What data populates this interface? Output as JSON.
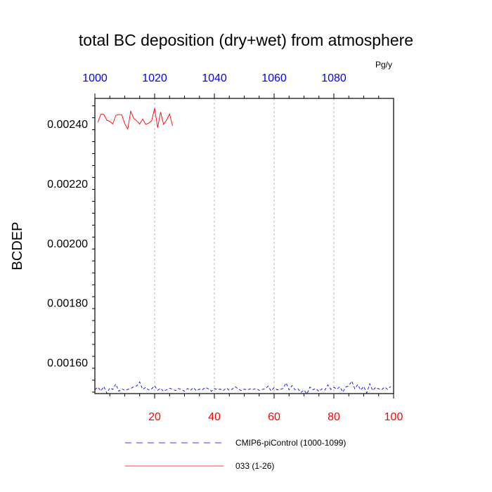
{
  "chart_data": {
    "type": "line",
    "title": "total BC deposition (dry+wet) from atmosphere",
    "units": "Pg/y",
    "ylabel": "BCDEP",
    "xlabel": "",
    "xlim": [
      0,
      100
    ],
    "ylim": [
      0.001495,
      0.002485
    ],
    "top_xlim": [
      1000,
      1100
    ],
    "x_ticks": [
      20,
      40,
      60,
      80,
      100
    ],
    "top_x_ticks": [
      1000,
      1020,
      1040,
      1060,
      1080
    ],
    "y_ticks": [
      0.0016,
      0.0018,
      0.002,
      0.0022,
      0.0024
    ],
    "y_tick_labels": [
      "0.00160",
      "0.00180",
      "0.00200",
      "0.00220",
      "0.00240"
    ],
    "grid": "vertical dashed at bottom x ticks",
    "legend_position": "bottom",
    "colors": {
      "bottom_axis": "#ff0000",
      "top_axis": "#0000ff",
      "series_ctrl": "#0000ff",
      "series_033": "#ff0000",
      "grid": "#aaaaaa"
    },
    "series": [
      {
        "name": "CMIP6-piControl (1000-1099)",
        "color": "#0000ff",
        "dash": "dashed",
        "axis": "top",
        "x": [
          1000,
          1001,
          1002,
          1003,
          1004,
          1005,
          1006,
          1007,
          1008,
          1009,
          1010,
          1011,
          1012,
          1013,
          1014,
          1015,
          1016,
          1017,
          1018,
          1019,
          1020,
          1021,
          1022,
          1023,
          1024,
          1025,
          1026,
          1027,
          1028,
          1029,
          1030,
          1031,
          1032,
          1033,
          1034,
          1035,
          1036,
          1037,
          1038,
          1039,
          1040,
          1041,
          1042,
          1043,
          1044,
          1045,
          1046,
          1047,
          1048,
          1049,
          1050,
          1051,
          1052,
          1053,
          1054,
          1055,
          1056,
          1057,
          1058,
          1059,
          1060,
          1061,
          1062,
          1063,
          1064,
          1065,
          1066,
          1067,
          1068,
          1069,
          1070,
          1071,
          1072,
          1073,
          1074,
          1075,
          1076,
          1077,
          1078,
          1079,
          1080,
          1081,
          1082,
          1083,
          1084,
          1085,
          1086,
          1087,
          1088,
          1089,
          1090,
          1091,
          1092,
          1093,
          1094,
          1095,
          1096,
          1097,
          1098,
          1099
        ],
        "y": [
          0.001508,
          0.001517,
          0.001504,
          0.001519,
          0.001496,
          0.001514,
          0.001509,
          0.001527,
          0.001503,
          0.001511,
          0.001506,
          0.001509,
          0.001512,
          0.001518,
          0.001521,
          0.001534,
          0.001509,
          0.001516,
          0.001507,
          0.001511,
          0.001521,
          0.001506,
          0.001513,
          0.001502,
          0.001508,
          0.001513,
          0.00151,
          0.001505,
          0.001512,
          0.001509,
          0.001503,
          0.001512,
          0.001506,
          0.001515,
          0.001504,
          0.00151,
          0.001508,
          0.001516,
          0.001511,
          0.001503,
          0.001512,
          0.001508,
          0.00151,
          0.001505,
          0.001514,
          0.001506,
          0.00151,
          0.001518,
          0.00151,
          0.001505,
          0.00151,
          0.001507,
          0.001511,
          0.001509,
          0.001512,
          0.001506,
          0.001509,
          0.001511,
          0.00152,
          0.001504,
          0.001515,
          0.001508,
          0.001509,
          0.001512,
          0.001531,
          0.001508,
          0.001522,
          0.001508,
          0.001511,
          0.001499,
          0.001507,
          0.001494,
          0.001517,
          0.001508,
          0.001512,
          0.001502,
          0.001511,
          0.001507,
          0.001524,
          0.001509,
          0.001516,
          0.00151,
          0.001518,
          0.0015,
          0.001517,
          0.001521,
          0.001537,
          0.001511,
          0.001525,
          0.001507,
          0.001519,
          0.001497,
          0.001528,
          0.001505,
          0.001516,
          0.001511,
          0.001508,
          0.001517,
          0.001509,
          0.001519
        ]
      },
      {
        "name": "033 (1-26)",
        "color": "#ff0000",
        "dash": "solid",
        "axis": "bottom",
        "x": [
          1,
          2,
          3,
          4,
          5,
          6,
          7,
          8,
          9,
          10,
          11,
          12,
          13,
          14,
          15,
          16,
          17,
          18,
          19,
          20,
          21,
          22,
          23,
          24,
          25,
          26
        ],
        "y": [
          0.002405,
          0.002432,
          0.002431,
          0.002412,
          0.002408,
          0.002399,
          0.002428,
          0.002431,
          0.00243,
          0.0024,
          0.002382,
          0.002442,
          0.002418,
          0.00241,
          0.002399,
          0.002416,
          0.002398,
          0.002402,
          0.00241,
          0.002452,
          0.002387,
          0.002439,
          0.002398,
          0.002412,
          0.002433,
          0.002393
        ]
      }
    ]
  }
}
